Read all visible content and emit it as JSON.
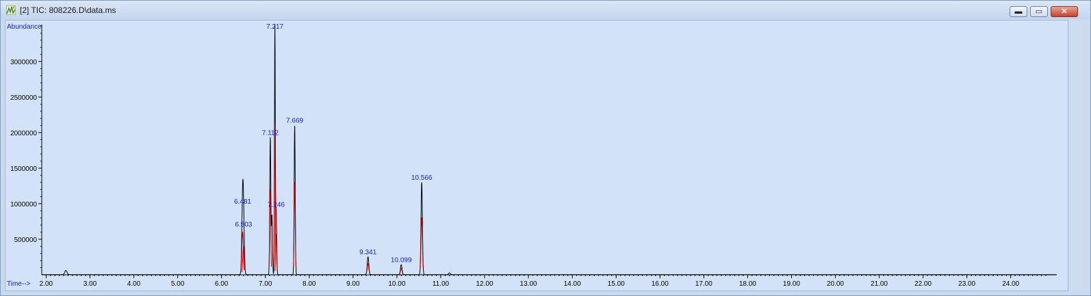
{
  "window": {
    "title": "[2] TIC: 808226.D\\data.ms",
    "controls": {
      "minimize": "▬",
      "maximize": "▭",
      "close": "✕"
    }
  },
  "colors": {
    "background": "#d2e3f9",
    "trace": "#000000",
    "baseline": "#cc0000",
    "labels": "#1a1ad9"
  },
  "chart_data": {
    "type": "line",
    "ylabel": "Abundance",
    "xlabel": "Time-->",
    "xlim": [
      1.9,
      25.05
    ],
    "ylim": [
      0,
      3500000
    ],
    "x_ticks": [
      2,
      3,
      4,
      5,
      6,
      7,
      8,
      9,
      10,
      11,
      12,
      13,
      14,
      15,
      16,
      17,
      18,
      19,
      20,
      21,
      22,
      23,
      24
    ],
    "x_tick_labels": [
      "2.00",
      "3.00",
      "4.00",
      "5.00",
      "6.00",
      "7.00",
      "8.00",
      "9.00",
      "10.00",
      "11.00",
      "12.00",
      "13.00",
      "14.00",
      "15.00",
      "16.00",
      "17.00",
      "18.00",
      "19.00",
      "20.00",
      "21.00",
      "22.00",
      "23.00",
      "24.00"
    ],
    "y_ticks": [
      500000,
      1000000,
      1500000,
      2000000,
      2500000,
      3000000
    ],
    "y_tick_labels": [
      "500000",
      "1000000",
      "1500000",
      "2000000",
      "2500000",
      "3000000"
    ],
    "peaks": [
      {
        "rt": 2.45,
        "height": 60000,
        "width": 0.025,
        "label": ""
      },
      {
        "rt": 6.481,
        "height": 960000,
        "width": 0.018,
        "label": "6.481",
        "integrated": true
      },
      {
        "rt": 6.503,
        "height": 640000,
        "width": 0.018,
        "label": "6.503",
        "integrated": true
      },
      {
        "rt": 7.112,
        "height": 1930000,
        "width": 0.012,
        "label": "7.112",
        "integrated": true
      },
      {
        "rt": 7.15,
        "height": 830000,
        "width": 0.012,
        "label": ""
      },
      {
        "rt": 7.217,
        "height": 3480000,
        "width": 0.009,
        "label": "7.217",
        "integrated": true
      },
      {
        "rt": 7.246,
        "height": 920000,
        "width": 0.012,
        "label": "7.246",
        "integrated": true
      },
      {
        "rt": 7.669,
        "height": 2100000,
        "width": 0.012,
        "label": "7.669",
        "integrated": true
      },
      {
        "rt": 9.341,
        "height": 250000,
        "width": 0.018,
        "label": "9.341",
        "integrated": true
      },
      {
        "rt": 10.099,
        "height": 140000,
        "width": 0.018,
        "label": "10.099",
        "integrated": true
      },
      {
        "rt": 10.566,
        "height": 1300000,
        "width": 0.016,
        "label": "10.566",
        "integrated": true
      },
      {
        "rt": 11.2,
        "height": 25000,
        "width": 0.02,
        "label": ""
      }
    ]
  }
}
